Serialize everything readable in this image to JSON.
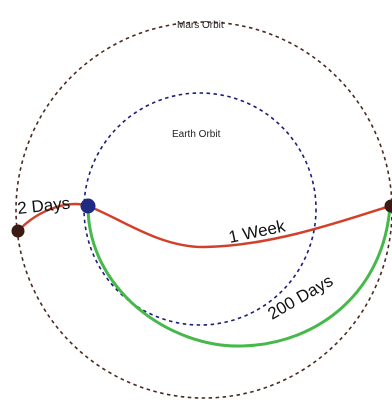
{
  "labels": {
    "mars_orbit": "Mars Orbit",
    "earth_orbit": "Earth Orbit",
    "two_days": "2 Days",
    "one_week": "1 Week",
    "two_hundred_days": "200 Days"
  },
  "colors": {
    "mars_orbit": "#4a2a1f",
    "earth_orbit": "#1a1d7a",
    "fast_path": "#d2402a",
    "hohmann_path": "#46b94a",
    "earth_marker": "#1f2a80",
    "mars_marker": "#3a1a12"
  }
}
